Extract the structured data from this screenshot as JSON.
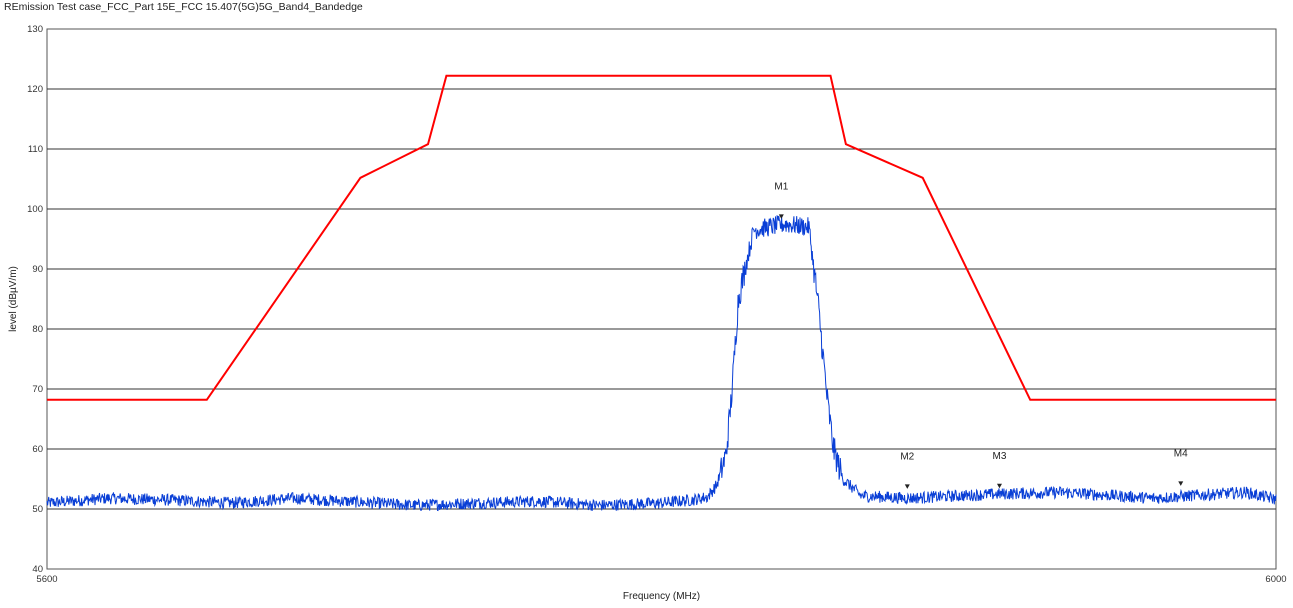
{
  "title": "REmission Test case_FCC_Part 15E_FCC 15.407(5G)5G_Band4_Bandedge",
  "chart_data": {
    "type": "line",
    "xlabel": "Frequency (MHz)",
    "ylabel": "level (dBµV/m)",
    "xlim": [
      5600,
      6000
    ],
    "ylim": [
      40,
      130
    ],
    "x_ticks": [
      "5600",
      "6000"
    ],
    "y_ticks": [
      "40",
      "50",
      "60",
      "70",
      "80",
      "90",
      "100",
      "110",
      "120",
      "130"
    ],
    "grid": "horizontal",
    "series": [
      {
        "color": "#ff0000",
        "x": [
          5600,
          5652,
          5702,
          5724,
          5730,
          5855,
          5860,
          5885,
          5920,
          6000
        ],
        "y": [
          68.2,
          68.2,
          105.2,
          110.8,
          122.2,
          122.2,
          110.8,
          105.2,
          68.2,
          68.2
        ]
      },
      {
        "color": "#0a3fd6",
        "x": [
          5600,
          5620,
          5640,
          5660,
          5680,
          5700,
          5720,
          5740,
          5760,
          5780,
          5800,
          5810,
          5815,
          5818,
          5821,
          5823,
          5825,
          5830,
          5840,
          5848,
          5851,
          5854,
          5856,
          5859,
          5865,
          5880,
          5910,
          5930,
          5960,
          5990,
          6000
        ],
        "y": [
          51.0,
          51.8,
          51.5,
          51.0,
          51.8,
          51.2,
          50.6,
          51.0,
          51.3,
          50.6,
          51.0,
          51.5,
          52.0,
          54.0,
          59.0,
          70.0,
          85.0,
          96.5,
          97.5,
          97.0,
          84.0,
          68.0,
          60.0,
          55.0,
          52.2,
          51.8,
          52.5,
          52.8,
          51.8,
          52.8,
          51.6
        ]
      }
    ],
    "markers": [
      {
        "label": "M1",
        "x": 5839,
        "y": 98.6
      },
      {
        "label": "M2",
        "x": 5880,
        "y": 53.6
      },
      {
        "label": "M3",
        "x": 5910,
        "y": 53.7
      },
      {
        "label": "M4",
        "x": 5969,
        "y": 54.1
      }
    ],
    "colors": {
      "grid": "#333333",
      "frame": "#555555",
      "limit": "#ff0000",
      "trace": "#0a3fd6"
    }
  }
}
